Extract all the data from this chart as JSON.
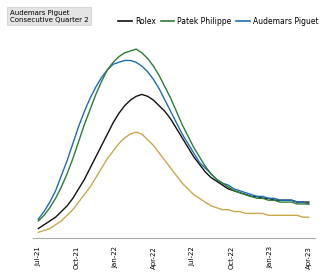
{
  "title": "",
  "legend_entries": [
    "Rolex",
    "Patek Philippe",
    "Audemars Piguet"
  ],
  "legend_colors": [
    "#000000",
    "#2e7d32",
    "#1565c0"
  ],
  "tooltip_text": "Audemars Piguet\nConsecutive Quarter 2",
  "x_labels": [
    "Jul-21",
    "Oct-21",
    "Jan-22",
    "Apr-22",
    "Jul-22",
    "Oct-22",
    "Jan-23",
    "Apr-23"
  ],
  "background_color": "#ffffff",
  "rolex_color": "#111111",
  "patek_color": "#2e7d32",
  "audemars_color": "#1e6bb8",
  "gold_color": "#c9a84c",
  "rolex_data": [
    0.05,
    0.07,
    0.09,
    0.11,
    0.14,
    0.17,
    0.21,
    0.26,
    0.31,
    0.37,
    0.43,
    0.49,
    0.55,
    0.61,
    0.66,
    0.7,
    0.73,
    0.75,
    0.76,
    0.75,
    0.73,
    0.7,
    0.67,
    0.63,
    0.58,
    0.53,
    0.48,
    0.43,
    0.39,
    0.35,
    0.32,
    0.3,
    0.28,
    0.26,
    0.25,
    0.24,
    0.23,
    0.22,
    0.22,
    0.21,
    0.21,
    0.2,
    0.2,
    0.2,
    0.2,
    0.19,
    0.19,
    0.19
  ],
  "patek_data": [
    0.09,
    0.12,
    0.16,
    0.21,
    0.27,
    0.34,
    0.42,
    0.51,
    0.6,
    0.68,
    0.76,
    0.83,
    0.89,
    0.93,
    0.96,
    0.98,
    0.99,
    1.0,
    0.98,
    0.95,
    0.91,
    0.86,
    0.8,
    0.74,
    0.67,
    0.6,
    0.54,
    0.48,
    0.43,
    0.38,
    0.34,
    0.31,
    0.29,
    0.27,
    0.25,
    0.24,
    0.23,
    0.22,
    0.21,
    0.21,
    0.2,
    0.2,
    0.19,
    0.19,
    0.19,
    0.18,
    0.18,
    0.18
  ],
  "audemars_data": [
    0.1,
    0.14,
    0.19,
    0.25,
    0.33,
    0.41,
    0.5,
    0.59,
    0.67,
    0.74,
    0.8,
    0.85,
    0.89,
    0.92,
    0.93,
    0.94,
    0.94,
    0.93,
    0.91,
    0.88,
    0.84,
    0.79,
    0.73,
    0.67,
    0.61,
    0.55,
    0.5,
    0.45,
    0.4,
    0.37,
    0.34,
    0.31,
    0.29,
    0.28,
    0.26,
    0.25,
    0.24,
    0.23,
    0.22,
    0.22,
    0.21,
    0.21,
    0.2,
    0.2,
    0.2,
    0.19,
    0.19,
    0.18
  ],
  "gold_data": [
    0.03,
    0.04,
    0.05,
    0.07,
    0.09,
    0.12,
    0.15,
    0.19,
    0.23,
    0.27,
    0.32,
    0.37,
    0.42,
    0.46,
    0.5,
    0.53,
    0.55,
    0.56,
    0.55,
    0.52,
    0.49,
    0.45,
    0.41,
    0.37,
    0.33,
    0.29,
    0.26,
    0.23,
    0.21,
    0.19,
    0.17,
    0.16,
    0.15,
    0.15,
    0.14,
    0.14,
    0.13,
    0.13,
    0.13,
    0.13,
    0.12,
    0.12,
    0.12,
    0.12,
    0.12,
    0.12,
    0.11,
    0.11
  ],
  "ylim": [
    0.0,
    1.08
  ],
  "n_points": 48
}
